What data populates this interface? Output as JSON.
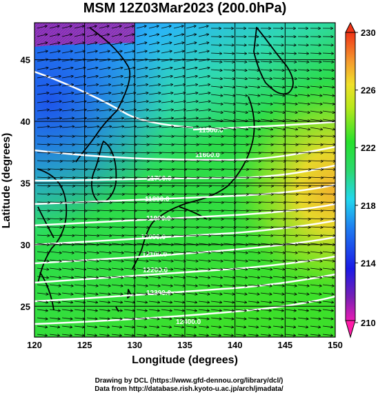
{
  "title": "MSM 12Z03Mar2023 (200.0hPa)",
  "xlabel": "Longitude (degrees)",
  "ylabel": "Latitude  (degrees)",
  "x_ticks": [
    "120",
    "125",
    "130",
    "135",
    "140",
    "145",
    "150"
  ],
  "y_ticks": [
    "25",
    "30",
    "35",
    "40",
    "45"
  ],
  "colorbar_ticks": [
    "210",
    "214",
    "218",
    "222",
    "226",
    "230"
  ],
  "contour_labels": [
    "11500.0",
    "11600.0",
    "11700.0",
    "11800.0",
    "11900.0",
    "12000.0",
    "12100.0",
    "12200.0",
    "12300.0",
    "12400.0"
  ],
  "credits": {
    "line1": "Drawing by DCL (https://www.gfd-dennou.org/library/dcl/)",
    "line2": "Data from http://database.rish.kyoto-u.ac.jp/arch/jmadata/"
  },
  "map_data": {
    "lon_range": [
      120,
      150
    ],
    "lat_range": [
      22.5,
      48
    ],
    "colorbar_range": [
      210,
      230
    ],
    "palette": [
      "#ff1ba8",
      "#7a1fb4",
      "#1a1ae6",
      "#1e7cf0",
      "#22d7ee",
      "#2bd86c",
      "#27e12c",
      "#b8e81b",
      "#f0e02a",
      "#f59a2e",
      "#ef3417"
    ]
  }
}
